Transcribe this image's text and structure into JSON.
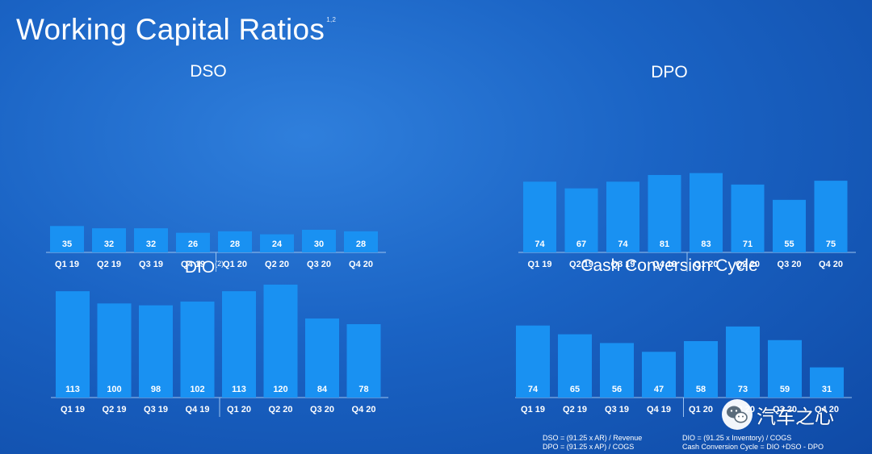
{
  "page": {
    "title": "Working Capital Ratios",
    "title_sup": "1,2"
  },
  "colors": {
    "bar": "#1991f2",
    "axis": "#9cc3ee"
  },
  "chart_data": [
    {
      "id": "dso",
      "type": "bar",
      "title": "DSO",
      "title_sup": "",
      "categories": [
        "Q1 19",
        "Q2 19",
        "Q3 19",
        "Q4 19",
        "Q1 20",
        "Q2 20",
        "Q3 20",
        "Q4 20"
      ],
      "values": [
        35,
        32,
        32,
        26,
        28,
        24,
        30,
        28
      ],
      "ylim": [
        0,
        120
      ]
    },
    {
      "id": "dpo",
      "type": "bar",
      "title": "DPO",
      "title_sup": "",
      "categories": [
        "Q1 19",
        "Q2 19",
        "Q3 19",
        "Q4 19",
        "Q1 20",
        "Q2 20",
        "Q3 20",
        "Q4 20"
      ],
      "values": [
        74,
        67,
        74,
        81,
        83,
        71,
        55,
        75
      ],
      "ylim": [
        0,
        120
      ]
    },
    {
      "id": "dio",
      "type": "bar",
      "title": "DIO",
      "title_sup": "(2)",
      "categories": [
        "Q1 19",
        "Q2 19",
        "Q3 19",
        "Q4 19",
        "Q1 20",
        "Q2 20",
        "Q3 20",
        "Q4 20"
      ],
      "values": [
        113,
        100,
        98,
        102,
        113,
        120,
        84,
        78
      ],
      "ylim": [
        0,
        120
      ]
    },
    {
      "id": "ccc",
      "type": "bar",
      "title": "Cash Conversion Cycle",
      "title_sup": "",
      "categories": [
        "Q1 19",
        "Q2 19",
        "Q3 19",
        "Q4 19",
        "Q1 20",
        "Q2 20",
        "Q3 20",
        "Q4 20"
      ],
      "values": [
        74,
        65,
        56,
        47,
        58,
        73,
        59,
        31
      ],
      "ylim": [
        0,
        120
      ]
    }
  ],
  "footnotes": {
    "left": [
      "DSO = (91.25 x AR) / Revenue",
      "DPO = (91.25 x AP) / COGS"
    ],
    "right": [
      "DIO = (91.25 x Inventory) / COGS",
      "Cash Conversion Cycle =  DIO +DSO - DPO"
    ]
  },
  "watermark": {
    "text": "汽车之心",
    "icon": "wechat-icon"
  }
}
